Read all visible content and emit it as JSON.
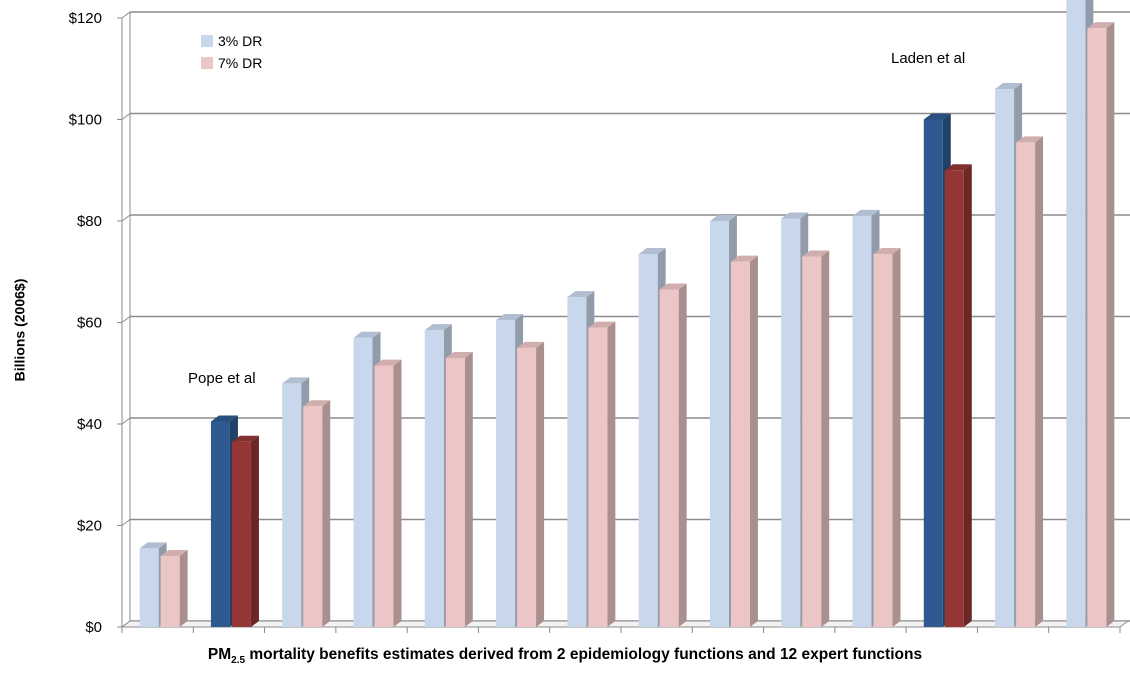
{
  "chart_data": {
    "type": "bar",
    "title": "",
    "ylabel": "Billions  (2006$)",
    "xlabel": {
      "prefix": "PM",
      "subscript": "2.5",
      "suffix": " mortality benefits estimates derived from 2 epidemiology functions and 12 expert functions"
    },
    "ylim": [
      0,
      120
    ],
    "yticks": [
      "$0",
      "$20",
      "$40",
      "$60",
      "$80",
      "$100",
      "$120"
    ],
    "ytick_values": [
      0,
      20,
      40,
      60,
      80,
      100,
      120
    ],
    "grid": true,
    "legend_position": "top-left",
    "categories": [
      "",
      "Pope et al",
      "",
      "",
      "",
      "",
      "",
      "",
      "",
      "",
      "",
      "Laden et al",
      "",
      ""
    ],
    "series": [
      {
        "name": "3% DR",
        "color": "#c9d7ec",
        "values": [
          15.5,
          40.5,
          48,
          57,
          58.5,
          60.5,
          65,
          73.5,
          80,
          80.5,
          81,
          100,
          106,
          124
        ]
      },
      {
        "name": "7% DR",
        "color": "#ecc6c6",
        "values": [
          14,
          36.5,
          43.5,
          51.5,
          53,
          55,
          59,
          66.5,
          72,
          73,
          73.5,
          90,
          95.5,
          118
        ]
      }
    ],
    "highlight": {
      "indices": [
        1,
        11
      ],
      "colors": [
        "#2e5a8f",
        "#933635"
      ]
    },
    "annotations": [
      {
        "text": "Pope et al",
        "category_index": 1
      },
      {
        "text": "Laden et al",
        "category_index": 11
      }
    ]
  }
}
